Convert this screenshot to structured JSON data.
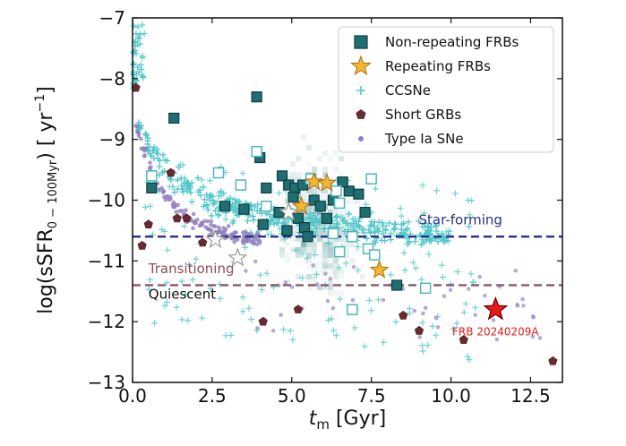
{
  "chart_data": {
    "type": "scatter",
    "xlabel_main": "t",
    "xlabel_sub": "m",
    "xlabel_unit": " [Gyr]",
    "ylabel_main": "log(sSFR",
    "ylabel_sub": "0 − 100Myr",
    "ylabel_unit": ") [ yr",
    "ylabel_sup": "−1",
    "ylabel_end": "]",
    "xlim": [
      0,
      13.5
    ],
    "ylim": [
      -13,
      -7
    ],
    "xticks": [
      0,
      2.5,
      5,
      7.5,
      10,
      12.5
    ],
    "xtick_labels": [
      "0.0",
      "2.5",
      "5.0",
      "7.5",
      "10.0",
      "12.5"
    ],
    "yticks": [
      -13,
      -12,
      -11,
      -10,
      -9,
      -8,
      -7
    ],
    "ytick_labels": [
      "−13",
      "−12",
      "−11",
      "−10",
      "−9",
      "−8",
      "−7"
    ],
    "legend": {
      "placement": "top-right",
      "entries": [
        {
          "label": "Non-repeating FRBs",
          "marker": "square",
          "color": "#1f6f72"
        },
        {
          "label": "Repeating FRBs",
          "marker": "star",
          "color": "#f5b733"
        },
        {
          "label": "CCSNe",
          "marker": "plus",
          "color": "#52c7c9"
        },
        {
          "label": "Short GRBs",
          "marker": "pentagon",
          "color": "#6b2a31"
        },
        {
          "label": "Type Ia SNe",
          "marker": "dot",
          "color": "#8e80bf"
        }
      ]
    },
    "hlines": [
      {
        "y": -10.6,
        "label": "Star-forming",
        "color": "#2a2f86",
        "label_color": "#2a2f86",
        "label_x": 10.3,
        "label_y": -10.4,
        "anchor": "middle"
      },
      {
        "y": -11.4,
        "label": "Transitioning",
        "color": "#8a5a68",
        "label_color": "#8a4b5a",
        "label_x": 0.5,
        "label_y": -11.2,
        "anchor": "start"
      }
    ],
    "region_labels": [
      {
        "text": "Quiescent",
        "x": 0.5,
        "y": -11.62,
        "color": "#111111"
      }
    ],
    "series": [
      {
        "name": "Non-repeating FRBs",
        "marker": "square",
        "filled": [
          [
            1.3,
            -8.65
          ],
          [
            3.9,
            -8.3
          ],
          [
            0.6,
            -9.8
          ],
          [
            2.9,
            -10.1
          ],
          [
            3.5,
            -10.15
          ],
          [
            4.1,
            -10.4
          ],
          [
            4.2,
            -9.8
          ],
          [
            4.0,
            -9.3
          ],
          [
            4.7,
            -9.6
          ],
          [
            4.9,
            -9.75
          ],
          [
            5.1,
            -9.8
          ],
          [
            4.6,
            -10.2
          ],
          [
            4.85,
            -10.5
          ],
          [
            5.2,
            -10.3
          ],
          [
            5.4,
            -10.45
          ],
          [
            5.5,
            -10.6
          ],
          [
            5.7,
            -10.0
          ],
          [
            5.9,
            -10.1
          ],
          [
            6.1,
            -10.3
          ],
          [
            6.3,
            -10.0
          ],
          [
            6.8,
            -9.85
          ],
          [
            7.1,
            -9.9
          ],
          [
            7.3,
            -10.2
          ],
          [
            5.05,
            -9.95
          ],
          [
            5.35,
            -9.75
          ],
          [
            6.6,
            -9.7
          ],
          [
            8.3,
            -11.4
          ]
        ],
        "open": [
          [
            0.6,
            -9.6
          ],
          [
            2.7,
            -9.55
          ],
          [
            3.4,
            -9.75
          ],
          [
            3.9,
            -9.2
          ],
          [
            4.2,
            -10.1
          ],
          [
            5.6,
            -9.65
          ],
          [
            6.4,
            -9.85
          ],
          [
            6.5,
            -10.05
          ],
          [
            6.3,
            -10.55
          ],
          [
            6.9,
            -10.6
          ],
          [
            6.5,
            -10.85
          ],
          [
            7.4,
            -10.8
          ],
          [
            7.6,
            -10.9
          ],
          [
            6.9,
            -11.8
          ],
          [
            9.2,
            -11.45
          ],
          [
            7.5,
            -9.65
          ]
        ]
      },
      {
        "name": "Repeating FRBs",
        "marker": "star",
        "filled": [
          [
            5.7,
            -9.7
          ],
          [
            6.1,
            -9.72
          ],
          [
            5.3,
            -10.1
          ],
          [
            7.75,
            -11.15
          ]
        ],
        "open": [
          [
            4.9,
            -10.2
          ],
          [
            2.6,
            -10.65
          ],
          [
            3.3,
            -10.95
          ]
        ],
        "highlight": {
          "x": 11.4,
          "y": -11.8,
          "color": "#e81a1a",
          "label": "FRB 20240209A"
        }
      },
      {
        "name": "Short GRBs",
        "marker": "pentagon",
        "points": [
          [
            0.1,
            -8.15
          ],
          [
            1.2,
            -9.55
          ],
          [
            0.5,
            -10.4
          ],
          [
            1.7,
            -10.3
          ],
          [
            2.2,
            -10.7
          ],
          [
            0.3,
            -10.75
          ],
          [
            5.2,
            -11.8
          ],
          [
            8.5,
            -11.9
          ],
          [
            9.0,
            -12.15
          ],
          [
            10.4,
            -12.3
          ],
          [
            13.2,
            -12.65
          ],
          [
            4.1,
            -12.0
          ],
          [
            1.4,
            -10.3
          ]
        ]
      }
    ]
  }
}
